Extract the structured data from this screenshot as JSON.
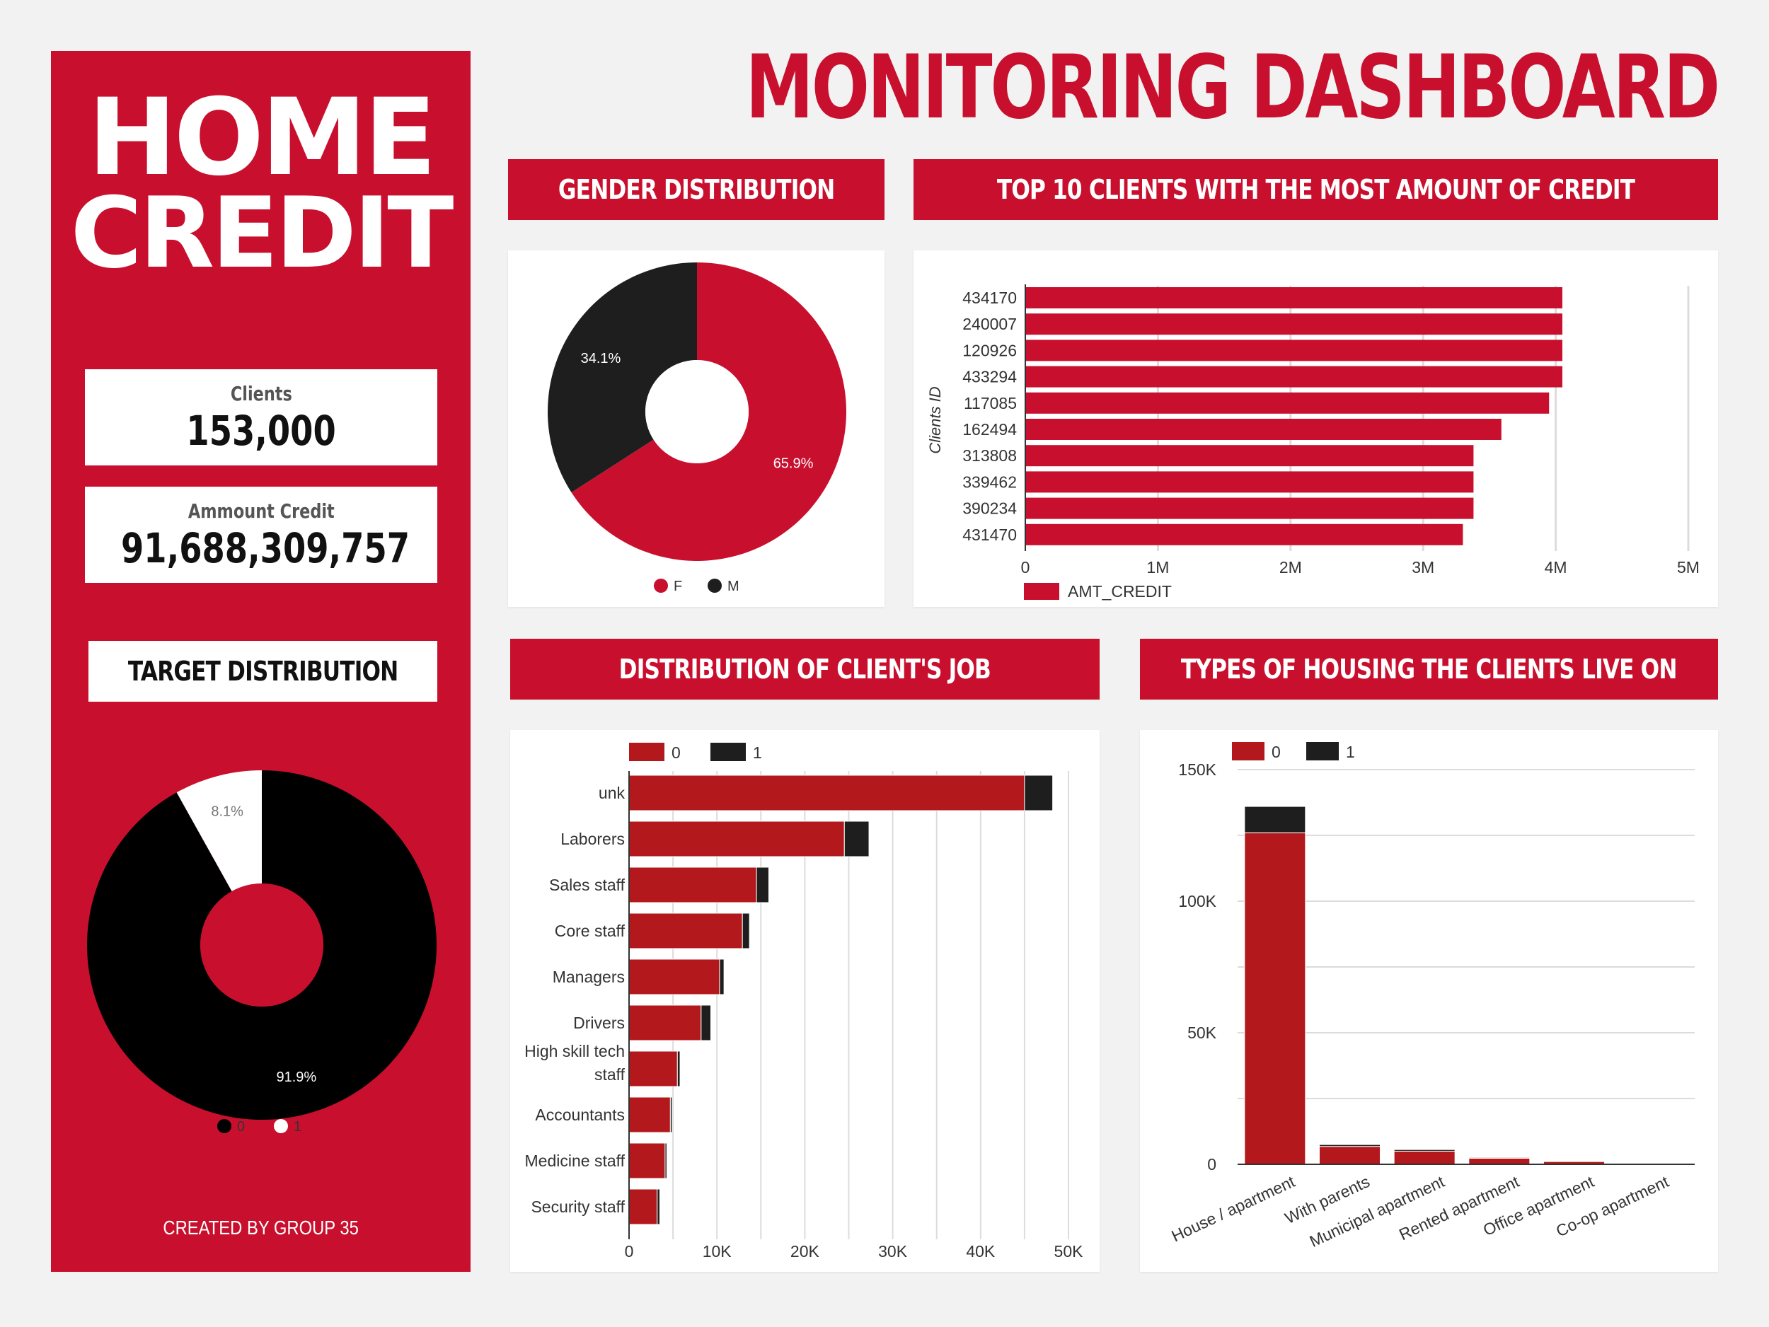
{
  "page": {
    "title": "MONITORING DASHBOARD",
    "logo_line1": "HOME",
    "logo_line2": "CREDIT",
    "footer": "CREATED BY GROUP 35"
  },
  "kpis": {
    "clients_label": "Clients",
    "clients_value": "153,000",
    "credit_label": "Ammount Credit",
    "credit_value": "91,688,309,757"
  },
  "headers": {
    "target": "TARGET DISTRIBUTION",
    "gender": "GENDER DISTRIBUTION",
    "top10": "TOP 10 CLIENTS WITH THE MOST AMOUNT OF CREDIT",
    "job": "DISTRIBUTION OF CLIENT'S JOB",
    "housing": "TYPES OF HOUSING THE CLIENTS LIVE ON"
  },
  "colors": {
    "red": "#c8102e",
    "dark_red": "#b3191c",
    "black": "#1e1e1e",
    "white": "#ffffff"
  },
  "chart_data": [
    {
      "id": "target",
      "type": "pie",
      "style": "donut",
      "labels": [
        "0",
        "1"
      ],
      "values": [
        91.9,
        8.1
      ],
      "value_labels": [
        "91.9%",
        "8.1%"
      ],
      "colors": [
        "#000000",
        "#ffffff"
      ],
      "legend": "bottom"
    },
    {
      "id": "gender",
      "type": "pie",
      "style": "donut",
      "labels": [
        "F",
        "M"
      ],
      "values": [
        65.9,
        34.1
      ],
      "value_labels": [
        "65.9%",
        "34.1%"
      ],
      "colors": [
        "#c8102e",
        "#1e1e1e"
      ],
      "legend": "bottom"
    },
    {
      "id": "top10",
      "type": "bar",
      "orientation": "horizontal",
      "categories": [
        "434170",
        "240007",
        "120926",
        "433294",
        "117085",
        "162494",
        "313808",
        "339462",
        "390234",
        "431470"
      ],
      "series": [
        {
          "name": "AMT_CREDIT",
          "values": [
            4050000,
            4050000,
            4050000,
            4050000,
            3950000,
            3590000,
            3380000,
            3380000,
            3380000,
            3300000
          ]
        }
      ],
      "ylabel": "Clients ID",
      "xlim": [
        0,
        5000000
      ],
      "xticks": [
        0,
        1000000,
        2000000,
        3000000,
        4000000,
        5000000
      ],
      "xtick_labels": [
        "0",
        "1M",
        "2M",
        "3M",
        "4M",
        "5M"
      ],
      "grid": true,
      "legend": "bottom-left"
    },
    {
      "id": "job",
      "type": "bar",
      "orientation": "horizontal",
      "stacked": true,
      "categories": [
        "unk",
        "Laborers",
        "Sales staff",
        "Core staff",
        "Managers",
        "Drivers",
        "High skill tech staff",
        "Accountants",
        "Medicine staff",
        "Security staff"
      ],
      "category_lines": [
        [
          "unk"
        ],
        [
          "Laborers"
        ],
        [
          "Sales staff"
        ],
        [
          "Core staff"
        ],
        [
          "Managers"
        ],
        [
          "Drivers"
        ],
        [
          "High skill tech",
          "staff"
        ],
        [
          "Accountants"
        ],
        [
          "Medicine staff"
        ],
        [
          "Security staff"
        ]
      ],
      "series": [
        {
          "name": "0",
          "values": [
            45000,
            24500,
            14500,
            12900,
            10300,
            8200,
            5500,
            4700,
            4100,
            3200
          ]
        },
        {
          "name": "1",
          "values": [
            3200,
            2800,
            1400,
            800,
            500,
            1100,
            300,
            200,
            200,
            300
          ]
        }
      ],
      "xlim": [
        0,
        50000
      ],
      "xticks": [
        0,
        10000,
        20000,
        30000,
        40000,
        50000
      ],
      "xtick_labels": [
        "0",
        "10K",
        "20K",
        "30K",
        "40K",
        "50K"
      ],
      "grid": true,
      "legend": "top-left"
    },
    {
      "id": "housing",
      "type": "bar",
      "orientation": "vertical",
      "stacked": true,
      "categories": [
        "House / apartment",
        "With parents",
        "Municipal apartment",
        "Rented apartment",
        "Office apartment",
        "Co-op apartment"
      ],
      "series": [
        {
          "name": "0",
          "values": [
            126000,
            6800,
            5000,
            2300,
            1200,
            500
          ]
        },
        {
          "name": "1",
          "values": [
            10000,
            700,
            600,
            300,
            100,
            50
          ]
        }
      ],
      "ylim": [
        0,
        150000
      ],
      "yticks": [
        0,
        50000,
        100000,
        150000
      ],
      "ytick_labels": [
        "0",
        "50K",
        "100K",
        "150K"
      ],
      "grid": true,
      "legend": "top-left"
    }
  ]
}
